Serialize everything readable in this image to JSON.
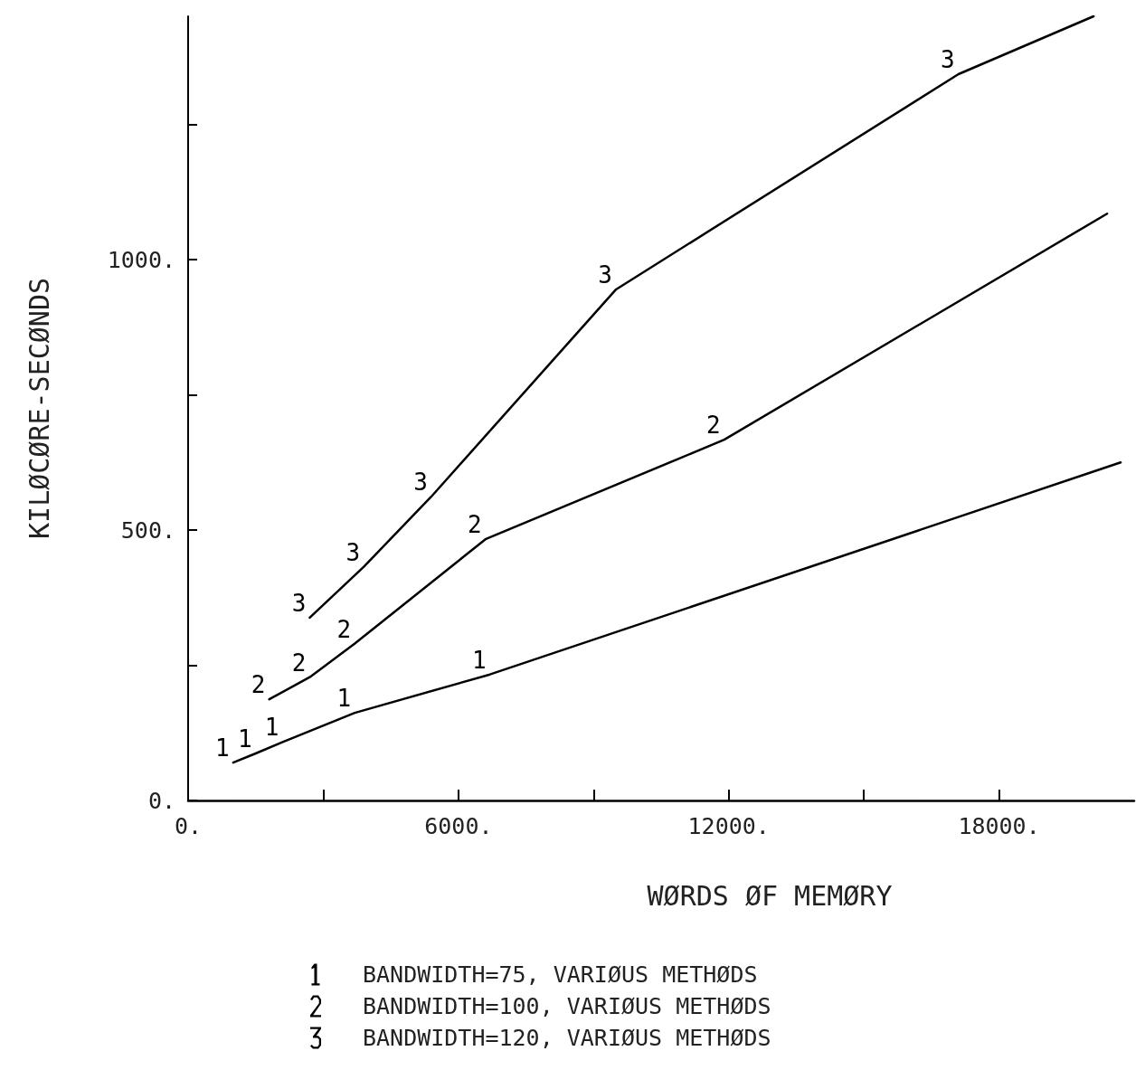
{
  "chart_data": {
    "type": "line",
    "xlabel": "WØRDS ØF MEMØRY",
    "ylabel": "KILØCØRE-SECØNDS",
    "xlim": [
      0,
      21000
    ],
    "xticks": [
      {
        "value": 0,
        "label": "0."
      },
      {
        "value": 3000,
        "label": null
      },
      {
        "value": 6000,
        "label": "6000."
      },
      {
        "value": 9000,
        "label": null
      },
      {
        "value": 12000,
        "label": "12000."
      },
      {
        "value": 15000,
        "label": null
      },
      {
        "value": 18000,
        "label": "18000."
      }
    ],
    "ylim": [
      0,
      1450
    ],
    "yticks": [
      {
        "value": 0,
        "label": "0."
      },
      {
        "value": 250,
        "label": null
      },
      {
        "value": 500,
        "label": "500."
      },
      {
        "value": 750,
        "label": null
      },
      {
        "value": 1000,
        "label": "1000."
      },
      {
        "value": 1250,
        "label": null
      }
    ],
    "grid": false,
    "legend": "bottom",
    "marker": "none",
    "line_style": "solid",
    "series": [
      {
        "name": "BANDWIDTH=75, VARIØUS METHØDS",
        "color": "#000000",
        "x": [
          1000,
          1500,
          2100,
          3700,
          6700,
          20700
        ],
        "values": [
          70,
          87,
          108,
          162,
          233,
          625
        ]
      },
      {
        "name": "BANDWIDTH=100, VARIØUS METHØDS",
        "color": "#000000",
        "x": [
          1800,
          2700,
          3700,
          6600,
          11900,
          20400
        ],
        "values": [
          187,
          228,
          290,
          483,
          667,
          1085
        ]
      },
      {
        "name": "BANDWIDTH=120, VARIØUS METHØDS",
        "color": "#000000",
        "x": [
          2700,
          3900,
          5400,
          9500,
          17100,
          20100
        ],
        "values": [
          338,
          432,
          562,
          945,
          1343,
          1450
        ]
      }
    ],
    "annotations": [
      {
        "text": "1",
        "x": 1000,
        "y": 70
      },
      {
        "text": "1",
        "x": 1500,
        "y": 87
      },
      {
        "text": "1",
        "x": 2100,
        "y": 108
      },
      {
        "text": "1",
        "x": 3700,
        "y": 162
      },
      {
        "text": "1",
        "x": 6700,
        "y": 233
      },
      {
        "text": "2",
        "x": 1800,
        "y": 187
      },
      {
        "text": "2",
        "x": 2700,
        "y": 228
      },
      {
        "text": "2",
        "x": 3700,
        "y": 290
      },
      {
        "text": "2",
        "x": 6600,
        "y": 483
      },
      {
        "text": "2",
        "x": 11900,
        "y": 667
      },
      {
        "text": "3",
        "x": 2700,
        "y": 338
      },
      {
        "text": "3",
        "x": 3900,
        "y": 432
      },
      {
        "text": "3",
        "x": 5400,
        "y": 562
      },
      {
        "text": "3",
        "x": 9500,
        "y": 945
      },
      {
        "text": "3",
        "x": 17100,
        "y": 1343
      }
    ]
  }
}
